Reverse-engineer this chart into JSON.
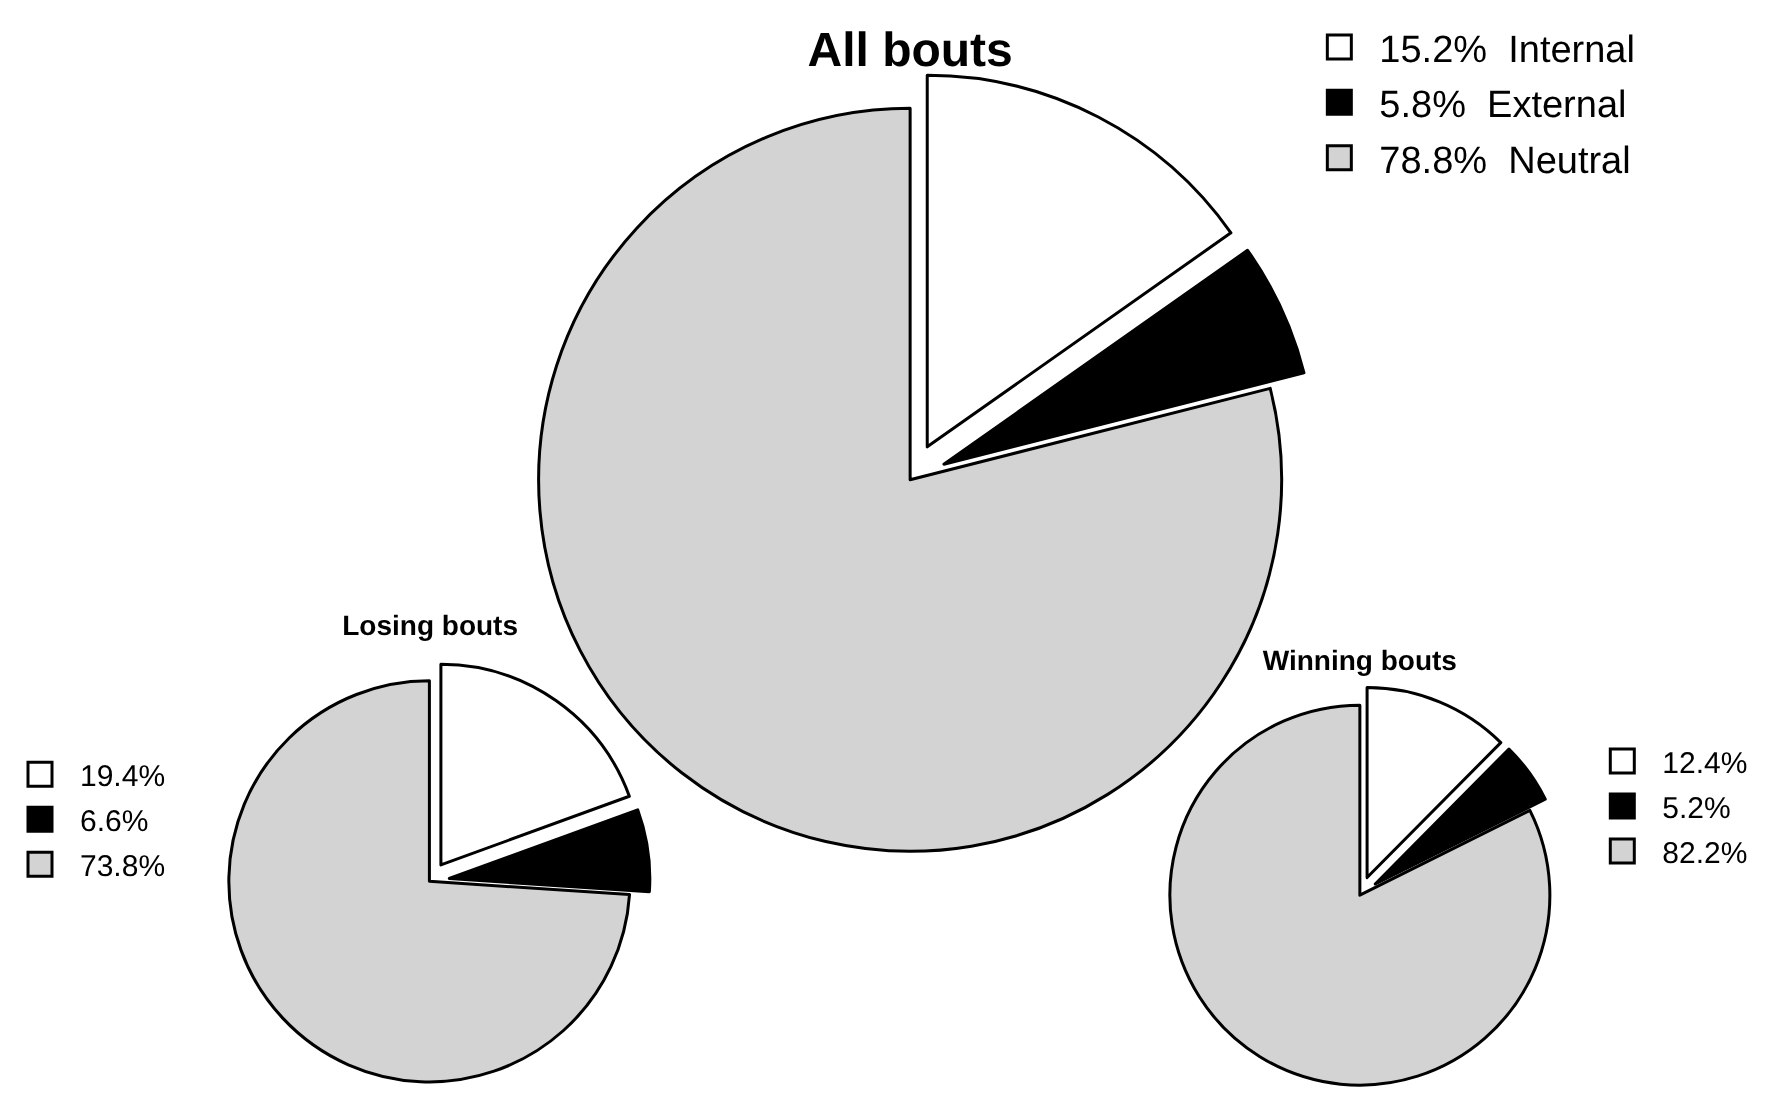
{
  "chart_data": [
    {
      "type": "pie",
      "title": "All bouts",
      "categories": [
        "Internal",
        "External",
        "Neutral"
      ],
      "values": [
        15.2,
        5.8,
        78.8
      ],
      "value_labels": [
        "15.2%",
        "5.8%",
        "78.8%"
      ],
      "colors": [
        "#ffffff",
        "#000000",
        "#d3d3d3"
      ],
      "legend": "top right"
    },
    {
      "type": "pie",
      "title": "Losing bouts",
      "categories": [
        "19.4%",
        "6.6%",
        "73.8%"
      ],
      "values": [
        19.4,
        6.6,
        73.8
      ],
      "colors": [
        "#ffffff",
        "#000000",
        "#d3d3d3"
      ],
      "legend": "left"
    },
    {
      "type": "pie",
      "title": "Winning bouts",
      "categories": [
        "12.4%",
        "5.2%",
        "82.2%"
      ],
      "values": [
        12.4,
        5.2,
        82.2
      ],
      "colors": [
        "#ffffff",
        "#000000",
        "#d3d3d3"
      ],
      "legend": "right"
    }
  ]
}
